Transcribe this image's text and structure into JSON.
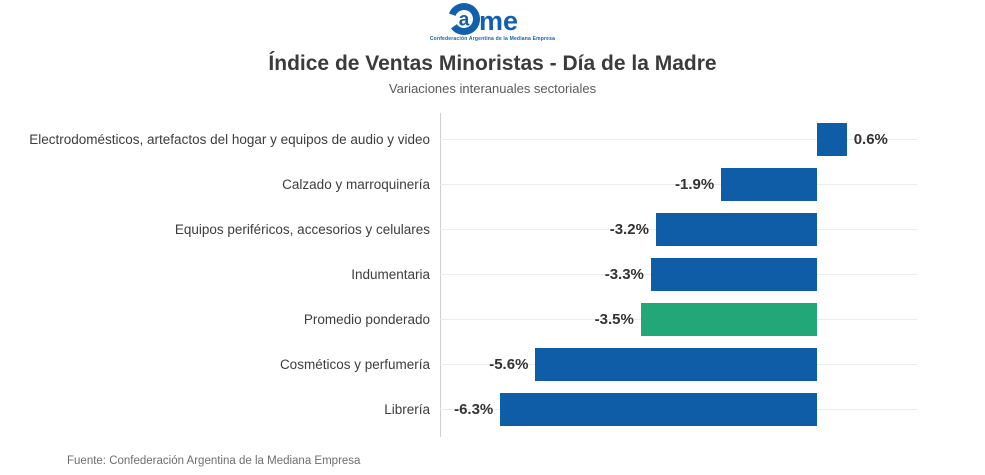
{
  "logo": {
    "letter_in_ring": "a",
    "letters_after": "me",
    "tagline": "Confederación Argentina de la Mediana Empresa",
    "brand_color": "#1160AE"
  },
  "footer": {
    "source": "Fuente: Confederación Argentina de la Mediana Empresa"
  },
  "chart_data": {
    "type": "bar",
    "orientation": "horizontal",
    "title": "Índice de Ventas Minoristas - Día de la Madre",
    "subtitle": "Variaciones interanuales sectoriales",
    "categories": [
      "Electrodomésticos, artefactos del hogar y equipos de audio y video",
      "Calzado y marroquinería",
      "Equipos periféricos, accesorios y celulares",
      "Indumentaria",
      "Promedio ponderado",
      "Cosméticos y perfumería",
      "Librería"
    ],
    "values": [
      0.6,
      -1.9,
      -3.2,
      -3.3,
      -3.5,
      -5.6,
      -6.3
    ],
    "value_labels": [
      "0.6%",
      "-1.9%",
      "-3.2%",
      "-3.3%",
      "-3.5%",
      "-5.6%",
      "-6.3%"
    ],
    "highlight_index": 4,
    "bar_color": "#0E5DA6",
    "highlight_color": "#22A878",
    "xlim": [
      -7.5,
      2.0
    ],
    "grid": true,
    "legend": false,
    "xlabel": "",
    "ylabel": ""
  }
}
